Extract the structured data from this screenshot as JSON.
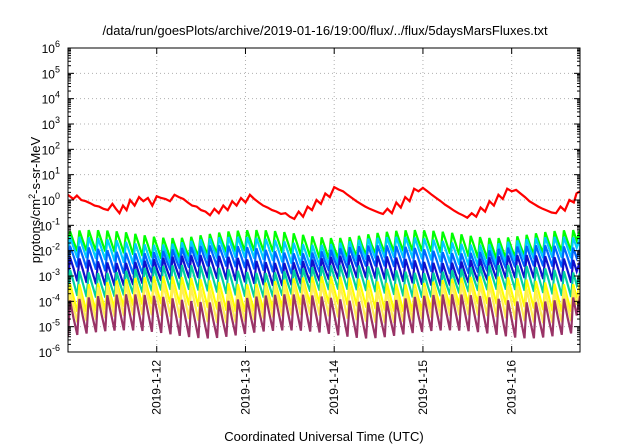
{
  "chart_data": {
    "type": "line",
    "title": "/data/run/goesPlots/archive/2019-01-16/19:00/flux/../flux/5daysMarsFluxes.txt",
    "xlabel": "Coordinated Universal Time (UTC)",
    "ylabel": {
      "base": "protons/cm",
      "sup": "2",
      "rest": "-s-sr-MeV"
    },
    "x_range_days": [
      0,
      5.77
    ],
    "x_ticks": [
      {
        "label": "2019-1-12",
        "day": 1.0
      },
      {
        "label": "2019-1-13",
        "day": 2.0
      },
      {
        "label": "2019-1-14",
        "day": 3.0
      },
      {
        "label": "2019-1-15",
        "day": 4.0
      },
      {
        "label": "2019-1-16",
        "day": 5.0
      }
    ],
    "y_scale": "log",
    "y_range": [
      1e-06,
      1000000.0
    ],
    "y_ticks": [
      {
        "base": "10",
        "exp": "-6"
      },
      {
        "base": "10",
        "exp": "-5"
      },
      {
        "base": "10",
        "exp": "-4"
      },
      {
        "base": "10",
        "exp": "-3"
      },
      {
        "base": "10",
        "exp": "-2"
      },
      {
        "base": "10",
        "exp": "-1"
      },
      {
        "base": "10",
        "exp": "0"
      },
      {
        "base": "10",
        "exp": "1"
      },
      {
        "base": "10",
        "exp": "2"
      },
      {
        "base": "10",
        "exp": "3"
      },
      {
        "base": "10",
        "exp": "4"
      },
      {
        "base": "10",
        "exp": "5"
      },
      {
        "base": "10",
        "exp": "6"
      }
    ],
    "grid": true,
    "series": [
      {
        "color": "#ff0000",
        "points": [
          [
            0.0,
            1.6
          ],
          [
            0.06,
            1.1
          ],
          [
            0.1,
            1.5
          ],
          [
            0.15,
            1.0
          ],
          [
            0.2,
            0.9
          ],
          [
            0.25,
            0.75
          ],
          [
            0.3,
            0.6
          ],
          [
            0.35,
            0.55
          ],
          [
            0.4,
            0.45
          ],
          [
            0.45,
            0.4
          ],
          [
            0.5,
            0.7
          ],
          [
            0.54,
            0.45
          ],
          [
            0.58,
            0.3
          ],
          [
            0.62,
            0.6
          ],
          [
            0.66,
            0.4
          ],
          [
            0.7,
            1.0
          ],
          [
            0.75,
            0.6
          ],
          [
            0.8,
            1.3
          ],
          [
            0.85,
            0.9
          ],
          [
            0.9,
            1.2
          ],
          [
            0.95,
            0.6
          ],
          [
            1.0,
            1.4
          ],
          [
            1.05,
            1.2
          ],
          [
            1.1,
            1.1
          ],
          [
            1.15,
            0.9
          ],
          [
            1.2,
            1.6
          ],
          [
            1.25,
            1.3
          ],
          [
            1.3,
            1.1
          ],
          [
            1.35,
            0.8
          ],
          [
            1.4,
            0.6
          ],
          [
            1.45,
            0.55
          ],
          [
            1.5,
            0.4
          ],
          [
            1.55,
            0.35
          ],
          [
            1.6,
            0.25
          ],
          [
            1.65,
            0.45
          ],
          [
            1.7,
            0.3
          ],
          [
            1.75,
            0.6
          ],
          [
            1.8,
            0.4
          ],
          [
            1.85,
            0.9
          ],
          [
            1.9,
            0.6
          ],
          [
            1.95,
            1.2
          ],
          [
            2.0,
            0.8
          ],
          [
            2.05,
            1.6
          ],
          [
            2.1,
            1.1
          ],
          [
            2.15,
            0.8
          ],
          [
            2.2,
            0.6
          ],
          [
            2.25,
            0.5
          ],
          [
            2.3,
            0.4
          ],
          [
            2.35,
            0.35
          ],
          [
            2.4,
            0.28
          ],
          [
            2.45,
            0.3
          ],
          [
            2.5,
            0.22
          ],
          [
            2.55,
            0.18
          ],
          [
            2.6,
            0.35
          ],
          [
            2.65,
            0.22
          ],
          [
            2.7,
            0.55
          ],
          [
            2.75,
            0.4
          ],
          [
            2.8,
            1.0
          ],
          [
            2.85,
            0.7
          ],
          [
            2.9,
            1.8
          ],
          [
            2.95,
            1.3
          ],
          [
            3.0,
            3.2
          ],
          [
            3.05,
            2.6
          ],
          [
            3.1,
            2.2
          ],
          [
            3.15,
            1.6
          ],
          [
            3.2,
            1.2
          ],
          [
            3.25,
            0.9
          ],
          [
            3.3,
            0.7
          ],
          [
            3.35,
            0.55
          ],
          [
            3.4,
            0.45
          ],
          [
            3.45,
            0.38
          ],
          [
            3.5,
            0.32
          ],
          [
            3.55,
            0.28
          ],
          [
            3.6,
            0.45
          ],
          [
            3.65,
            0.3
          ],
          [
            3.7,
            0.8
          ],
          [
            3.75,
            0.5
          ],
          [
            3.8,
            1.3
          ],
          [
            3.85,
            0.9
          ],
          [
            3.9,
            2.8
          ],
          [
            3.95,
            2.2
          ],
          [
            4.0,
            3.0
          ],
          [
            4.05,
            2.2
          ],
          [
            4.1,
            1.6
          ],
          [
            4.15,
            1.2
          ],
          [
            4.2,
            0.9
          ],
          [
            4.25,
            0.65
          ],
          [
            4.3,
            0.5
          ],
          [
            4.35,
            0.38
          ],
          [
            4.4,
            0.3
          ],
          [
            4.45,
            0.25
          ],
          [
            4.5,
            0.2
          ],
          [
            4.55,
            0.3
          ],
          [
            4.6,
            0.22
          ],
          [
            4.65,
            0.5
          ],
          [
            4.7,
            0.35
          ],
          [
            4.75,
            0.9
          ],
          [
            4.8,
            0.6
          ],
          [
            4.85,
            1.6
          ],
          [
            4.9,
            1.1
          ],
          [
            4.95,
            2.8
          ],
          [
            5.0,
            2.2
          ],
          [
            5.05,
            2.5
          ],
          [
            5.1,
            1.8
          ],
          [
            5.15,
            1.3
          ],
          [
            5.2,
            0.9
          ],
          [
            5.25,
            0.7
          ],
          [
            5.3,
            0.55
          ],
          [
            5.35,
            0.45
          ],
          [
            5.4,
            0.38
          ],
          [
            5.45,
            0.32
          ],
          [
            5.5,
            0.3
          ],
          [
            5.55,
            0.55
          ],
          [
            5.6,
            0.38
          ],
          [
            5.65,
            1.0
          ],
          [
            5.7,
            0.8
          ],
          [
            5.73,
            1.8
          ],
          [
            5.77,
            2.2
          ]
        ]
      },
      {
        "color": "#00ff00",
        "base": 0.012,
        "amp": 4.0,
        "period": 0.105
      },
      {
        "color": "#00ccff",
        "base": 0.0065,
        "amp": 4.0,
        "period": 0.105
      },
      {
        "color": "#0066ff",
        "base": 0.003,
        "amp": 4.0,
        "period": 0.105
      },
      {
        "color": "#1010cc",
        "base": 0.0011,
        "amp": 4.5,
        "period": 0.105
      },
      {
        "color": "#00d0a0",
        "base": 0.0004,
        "amp": 5.0,
        "period": 0.105
      },
      {
        "color": "#ffff00",
        "base": 0.00012,
        "amp": 6.0,
        "period": 0.105
      },
      {
        "color": "#ffee55",
        "base": 5e-05,
        "amp": 8.0,
        "period": 0.105
      },
      {
        "color": "#993366",
        "base": 1.4e-05,
        "amp": 10.0,
        "period": 0.105
      }
    ]
  }
}
